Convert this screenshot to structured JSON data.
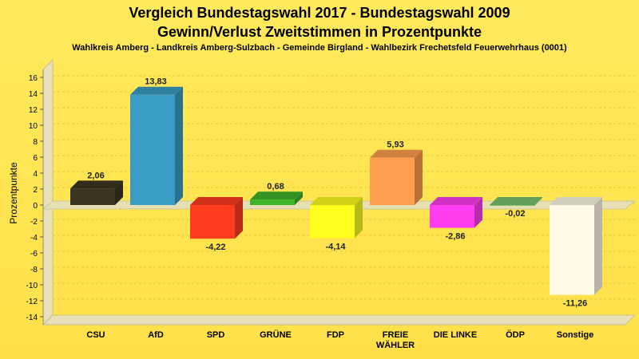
{
  "chart_data": {
    "type": "bar",
    "title": "Vergleich Bundestagswahl 2017 - Bundestagswahl 2009",
    "subtitle": "Gewinn/Verlust Zweitstimmen in Prozentpunkte",
    "caption": "Wahlkreis Amberg - Landkreis Amberg-Sulzbach - Gemeinde Birgland - Wahlbezirk Frechetsfeld Feuerwehrhaus (0001)",
    "ylabel": "Prozentpunkte",
    "xlabel": "",
    "ylim": [
      -14,
      16
    ],
    "yticks": [
      "16",
      "14",
      "12",
      "10",
      "8",
      "6",
      "4",
      "2",
      "0",
      "-2",
      "-4",
      "-6",
      "-8",
      "-10",
      "-12",
      "-14"
    ],
    "grid": true,
    "categories": [
      [
        "CSU"
      ],
      [
        "AfD"
      ],
      [
        "SPD"
      ],
      [
        "GRÜNE"
      ],
      [
        "FDP"
      ],
      [
        "FREIE",
        "WÄHLER"
      ],
      [
        "DIE LINKE"
      ],
      [
        "ÖDP"
      ],
      [
        "Sonstige"
      ]
    ],
    "values": [
      2.06,
      13.83,
      -4.22,
      0.68,
      -4.14,
      5.93,
      -2.86,
      -0.02,
      -11.26
    ],
    "value_labels": [
      "2,06",
      "13,83",
      "-4,22",
      "0,68",
      "-4,14",
      "5,93",
      "-2,86",
      "-0,02",
      "-11,26"
    ],
    "colors": [
      "#3a3520",
      "#3a9dc4",
      "#ff3c1e",
      "#3db22a",
      "#ffff1e",
      "#ff9e4e",
      "#ff3cf0",
      "#7ac26e",
      "#fffbe6"
    ]
  }
}
